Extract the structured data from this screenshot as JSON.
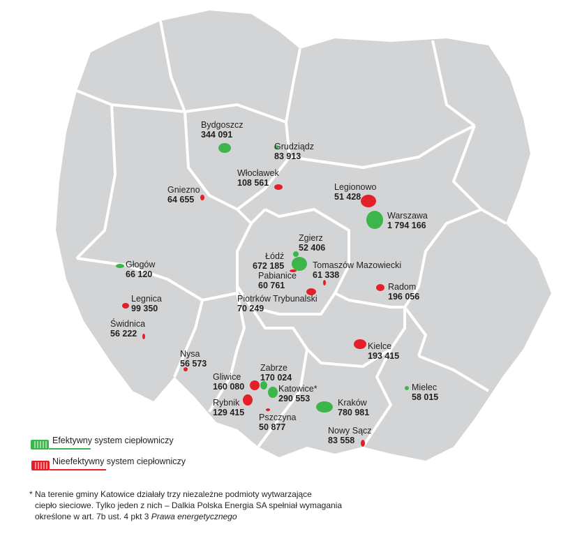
{
  "colors": {
    "efficient": "#3cb54a",
    "inefficient": "#e3202a",
    "land": "#d3d4d5",
    "border": "#ffffff"
  },
  "cities": [
    {
      "name": "Bydgoszcz",
      "population": "344 091",
      "status": "efficient"
    },
    {
      "name": "Grudziądz",
      "population": "83 913",
      "status": "efficient"
    },
    {
      "name": "Włocławek",
      "population": "108 561",
      "status": "inefficient"
    },
    {
      "name": "Gniezno",
      "population": "64 655",
      "status": "inefficient"
    },
    {
      "name": "Legionowo",
      "population": "51 428",
      "status": "inefficient"
    },
    {
      "name": "Warszawa",
      "population": "1 794 166",
      "status": "efficient"
    },
    {
      "name": "Zgierz",
      "population": "52 406",
      "status": "efficient"
    },
    {
      "name": "Łódź",
      "population": "672 185",
      "status": "efficient"
    },
    {
      "name": "Pabianice",
      "population": "60 761",
      "status": "inefficient"
    },
    {
      "name": "Tomaszów Mazowiecki",
      "population": "61 338",
      "status": "inefficient"
    },
    {
      "name": "Piotrków Trybunalski",
      "population": "70 249",
      "status": "inefficient"
    },
    {
      "name": "Radom",
      "population": "196 056",
      "status": "inefficient"
    },
    {
      "name": "Głogów",
      "population": "66 120",
      "status": "efficient"
    },
    {
      "name": "Legnica",
      "population": "99 350",
      "status": "inefficient"
    },
    {
      "name": "Świdnica",
      "population": "56 222",
      "status": "inefficient"
    },
    {
      "name": "Nysa",
      "population": "56 573",
      "status": "inefficient"
    },
    {
      "name": "Kielce",
      "population": "193 415",
      "status": "inefficient"
    },
    {
      "name": "Gliwice",
      "population": "160 080",
      "status": "inefficient"
    },
    {
      "name": "Zabrze",
      "population": "170 024",
      "status": "efficient"
    },
    {
      "name": "Katowice*",
      "population": "290 553",
      "status": "efficient"
    },
    {
      "name": "Rybnik",
      "population": "129 415",
      "status": "inefficient"
    },
    {
      "name": "Pszczyna",
      "population": "50 877",
      "status": "inefficient"
    },
    {
      "name": "Kraków",
      "population": "780 981",
      "status": "efficient"
    },
    {
      "name": "Nowy Sącz",
      "population": "83 558",
      "status": "inefficient"
    },
    {
      "name": "Mielec",
      "population": "58 015",
      "status": "efficient"
    }
  ],
  "legend": {
    "efficient": {
      "label": "Efektywny system ciepłowniczy",
      "icon": "radiator-icon"
    },
    "inefficient": {
      "label": "Nieefektywny system ciepłowniczy",
      "icon": "radiator-icon"
    }
  },
  "footnote": {
    "line1": "* Na terenie gminy Katowice działały trzy niezależne podmioty wytwarzające",
    "line2": "ciepło sieciowe.  Tylko jeden z nich – Dalkia Polska Energia SA spełniał wymagania",
    "line3": "określone w art. 7b ust. 4 pkt 3 ",
    "line3_italic": "Prawa energetycznego"
  }
}
